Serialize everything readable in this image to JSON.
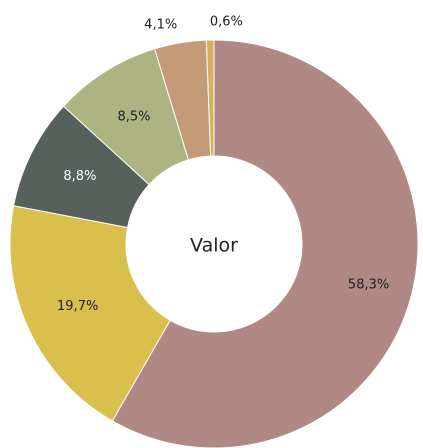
{
  "chart_data": {
    "type": "donut",
    "center_label": "Valor",
    "categories": [
      null,
      null,
      null,
      null,
      null,
      null
    ],
    "values": [
      58.3,
      19.7,
      8.8,
      8.5,
      4.1,
      0.6
    ],
    "value_labels": [
      "58,3%",
      "19,7%",
      "8,8%",
      "8,5%",
      "4,1%",
      "0,6%"
    ],
    "colors": [
      "#b08884",
      "#d9bf4c",
      "#58605c",
      "#adb482",
      "#c59a78",
      "#d4b060"
    ]
  }
}
